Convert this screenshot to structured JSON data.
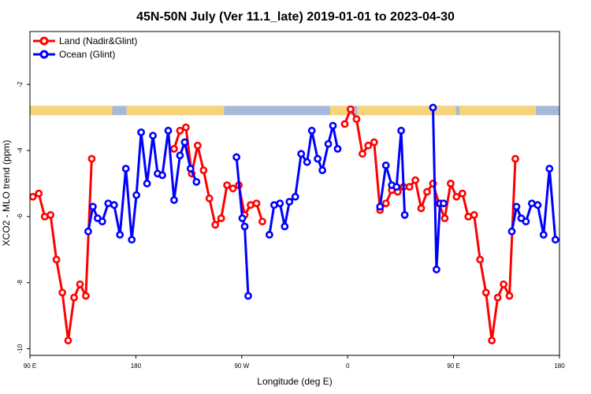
{
  "chart_data": {
    "type": "line",
    "title": "45N-50N July (Ver 11.1_late)   2019-01-01 to 2023-04-30",
    "xlabel": "Longitude (deg E)",
    "ylabel": "XCO2 - MLO trend (ppm)",
    "xlim": [
      90,
      540
    ],
    "ylim": [
      -10.2,
      -0.4
    ],
    "x_ticks": [
      {
        "value": 90,
        "label": "90 E"
      },
      {
        "value": 180,
        "label": "180"
      },
      {
        "value": 270,
        "label": "90 W"
      },
      {
        "value": 360,
        "label": "0"
      },
      {
        "value": 450,
        "label": "90 E"
      },
      {
        "value": 540,
        "label": "180"
      }
    ],
    "y_ticks": [
      {
        "value": -2,
        "label": "-2"
      },
      {
        "value": -4,
        "label": "-4"
      },
      {
        "value": -6,
        "label": "-6"
      },
      {
        "value": -8,
        "label": "-8"
      },
      {
        "value": -10,
        "label": "-10"
      }
    ],
    "map_strip": {
      "y_top": -2.65,
      "y_bottom": -2.93,
      "land_color": "#f5d47a",
      "ocean_color": "#a6b9d8"
    },
    "legend_position": "top-left",
    "series": [
      {
        "name": "Land (Nadir&Glint)",
        "color": "#ff0000",
        "segments": [
          [
            [
              92.5,
              -5.4
            ],
            [
              97.5,
              -5.3
            ],
            [
              102.5,
              -6.0
            ],
            [
              107.5,
              -5.95
            ],
            [
              112.5,
              -7.3
            ],
            [
              117.5,
              -8.3
            ],
            [
              122.5,
              -9.75
            ],
            [
              127.5,
              -8.45
            ],
            [
              132.5,
              -8.05
            ],
            [
              137.5,
              -8.4
            ],
            [
              142.5,
              -4.25
            ]
          ],
          [
            [
              212.5,
              -3.95
            ],
            [
              217.5,
              -3.4
            ],
            [
              222.5,
              -3.3
            ],
            [
              227.5,
              -4.7
            ],
            [
              232.5,
              -3.85
            ],
            [
              237.5,
              -4.6
            ],
            [
              242.5,
              -5.45
            ],
            [
              247.5,
              -6.25
            ],
            [
              252.5,
              -6.05
            ],
            [
              257.5,
              -5.05
            ],
            [
              262.5,
              -5.15
            ],
            [
              267.5,
              -5.05
            ],
            [
              272.5,
              -5.95
            ],
            [
              277.5,
              -5.65
            ],
            [
              282.5,
              -5.6
            ],
            [
              287.5,
              -6.15
            ]
          ],
          [
            [
              357.5,
              -3.2
            ],
            [
              362.5,
              -2.75
            ],
            [
              367.5,
              -3.05
            ],
            [
              372.5,
              -4.1
            ],
            [
              377.5,
              -3.85
            ],
            [
              382.5,
              -3.75
            ],
            [
              387.5,
              -5.8
            ],
            [
              392.5,
              -5.6
            ],
            [
              397.5,
              -5.2
            ],
            [
              402.5,
              -5.25
            ],
            [
              407.5,
              -5.1
            ],
            [
              412.5,
              -5.1
            ],
            [
              417.5,
              -4.9
            ],
            [
              422.5,
              -5.75
            ],
            [
              427.5,
              -5.25
            ],
            [
              432.5,
              -5.0
            ],
            [
              437.5,
              -5.6
            ],
            [
              442.5,
              -6.05
            ],
            [
              447.5,
              -5.0
            ],
            [
              452.5,
              -5.4
            ],
            [
              457.5,
              -5.3
            ],
            [
              462.5,
              -6.0
            ],
            [
              467.5,
              -5.95
            ],
            [
              472.5,
              -7.3
            ],
            [
              477.5,
              -8.3
            ],
            [
              482.5,
              -9.75
            ],
            [
              487.5,
              -8.45
            ],
            [
              492.5,
              -8.05
            ],
            [
              497.5,
              -8.4
            ],
            [
              502.5,
              -4.25
            ]
          ]
        ]
      },
      {
        "name": "Ocean (Glint)",
        "color": "#0000ff",
        "segments": [
          [
            [
              139.5,
              -6.45
            ],
            [
              143.5,
              -5.7
            ],
            [
              147.5,
              -6.05
            ],
            [
              151.5,
              -6.15
            ],
            [
              156.5,
              -5.6
            ],
            [
              161.5,
              -5.65
            ],
            [
              166.5,
              -6.55
            ],
            [
              171.5,
              -4.55
            ],
            [
              176.5,
              -6.7
            ],
            [
              180.5,
              -5.35
            ],
            [
              184.5,
              -3.45
            ],
            [
              189.5,
              -5.0
            ],
            [
              194.5,
              -3.55
            ],
            [
              198.5,
              -4.7
            ],
            [
              202.5,
              -4.75
            ],
            [
              207.5,
              -3.4
            ],
            [
              212.5,
              -5.5
            ],
            [
              217.5,
              -4.15
            ],
            [
              221.5,
              -3.75
            ],
            [
              226.5,
              -4.55
            ],
            [
              231.5,
              -4.95
            ]
          ],
          [
            [
              265.5,
              -4.2
            ],
            [
              270.5,
              -6.05
            ],
            [
              272.5,
              -6.3
            ],
            [
              275.5,
              -8.4
            ]
          ],
          [
            [
              293.5,
              -6.55
            ],
            [
              297.5,
              -5.65
            ],
            [
              302.5,
              -5.6
            ],
            [
              306.5,
              -6.3
            ],
            [
              310.5,
              -5.55
            ],
            [
              315.5,
              -5.4
            ],
            [
              320.5,
              -4.1
            ],
            [
              325.5,
              -4.35
            ],
            [
              329.5,
              -3.4
            ],
            [
              334.5,
              -4.25
            ],
            [
              338.5,
              -4.6
            ],
            [
              343.5,
              -3.8
            ],
            [
              347.5,
              -3.25
            ],
            [
              351.5,
              -3.95
            ]
          ],
          [
            [
              387.5,
              -5.7
            ],
            [
              392.5,
              -4.45
            ],
            [
              397.5,
              -5.05
            ],
            [
              401.5,
              -5.1
            ],
            [
              405.5,
              -3.4
            ],
            [
              408.5,
              -5.95
            ]
          ],
          [
            [
              432.5,
              -2.7
            ],
            [
              435.5,
              -7.6
            ],
            [
              438.5,
              -5.6
            ],
            [
              441.5,
              -5.6
            ]
          ],
          [
            [
              499.5,
              -6.45
            ],
            [
              503.5,
              -5.7
            ],
            [
              507.5,
              -6.05
            ],
            [
              511.5,
              -6.15
            ],
            [
              516.5,
              -5.6
            ],
            [
              521.5,
              -5.65
            ],
            [
              526.5,
              -6.55
            ],
            [
              531.5,
              -4.55
            ],
            [
              536.5,
              -6.7
            ]
          ]
        ]
      }
    ]
  }
}
